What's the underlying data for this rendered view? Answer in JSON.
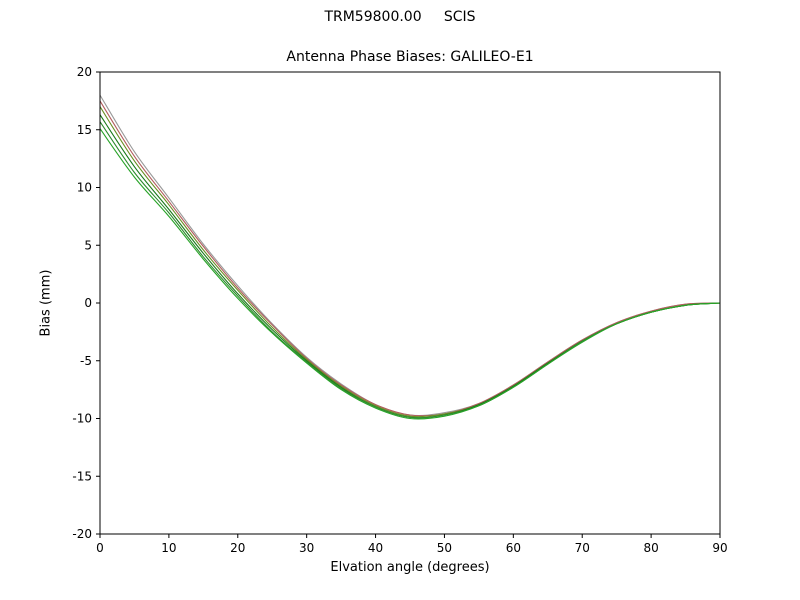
{
  "chart_data": {
    "type": "line",
    "suptitle": "TRM59800.00     SCIS",
    "title": "Antenna Phase Biases: GALILEO-E1",
    "xlabel": "Elvation angle (degrees)",
    "ylabel": "Bias (mm)",
    "xlim": [
      0,
      90
    ],
    "ylim": [
      -20,
      20
    ],
    "xticks": [
      0,
      10,
      20,
      30,
      40,
      50,
      60,
      70,
      80,
      90
    ],
    "yticks": [
      -20,
      -15,
      -10,
      -5,
      0,
      5,
      10,
      15,
      20
    ],
    "grid": false,
    "legend": "none",
    "frame_color": "#000000",
    "x": [
      0,
      5,
      10,
      15,
      20,
      25,
      30,
      35,
      40,
      45,
      50,
      55,
      60,
      65,
      70,
      75,
      80,
      85,
      90
    ],
    "series": [
      {
        "name": "line-1",
        "color": "#999999",
        "values": [
          18.0,
          13.1,
          9.1,
          5.1,
          1.5,
          -1.8,
          -4.7,
          -7.0,
          -8.8,
          -9.7,
          -9.5,
          -8.7,
          -7.1,
          -5.1,
          -3.2,
          -1.7,
          -0.7,
          -0.1,
          0.0
        ]
      },
      {
        "name": "line-2",
        "color": "#b25d5d",
        "values": [
          17.5,
          12.7,
          8.8,
          4.9,
          1.3,
          -1.9,
          -4.8,
          -7.1,
          -8.8,
          -9.7,
          -9.6,
          -8.7,
          -7.1,
          -5.1,
          -3.2,
          -1.7,
          -0.7,
          -0.1,
          0.0
        ]
      },
      {
        "name": "line-3",
        "color": "#6b8e23",
        "values": [
          17.0,
          12.3,
          8.5,
          4.6,
          1.1,
          -2.1,
          -4.9,
          -7.2,
          -8.9,
          -9.8,
          -9.6,
          -8.8,
          -7.2,
          -5.2,
          -3.3,
          -1.8,
          -0.8,
          -0.2,
          0.0
        ]
      },
      {
        "name": "line-4",
        "color": "#1a7a1a",
        "values": [
          16.3,
          11.8,
          8.1,
          4.3,
          0.8,
          -2.3,
          -5.0,
          -7.3,
          -9.0,
          -9.9,
          -9.7,
          -8.8,
          -7.2,
          -5.2,
          -3.3,
          -1.8,
          -0.8,
          -0.2,
          0.0
        ]
      },
      {
        "name": "line-5",
        "color": "#2e8b2e",
        "values": [
          15.7,
          11.3,
          7.8,
          4.0,
          0.6,
          -2.5,
          -5.1,
          -7.4,
          -9.0,
          -9.9,
          -9.7,
          -8.9,
          -7.3,
          -5.3,
          -3.3,
          -1.8,
          -0.8,
          -0.2,
          0.0
        ]
      },
      {
        "name": "line-6",
        "color": "#27a327",
        "values": [
          15.1,
          10.9,
          7.5,
          3.8,
          0.4,
          -2.6,
          -5.2,
          -7.5,
          -9.1,
          -10.0,
          -9.8,
          -8.9,
          -7.3,
          -5.3,
          -3.4,
          -1.8,
          -0.8,
          -0.2,
          0.0
        ]
      }
    ]
  }
}
